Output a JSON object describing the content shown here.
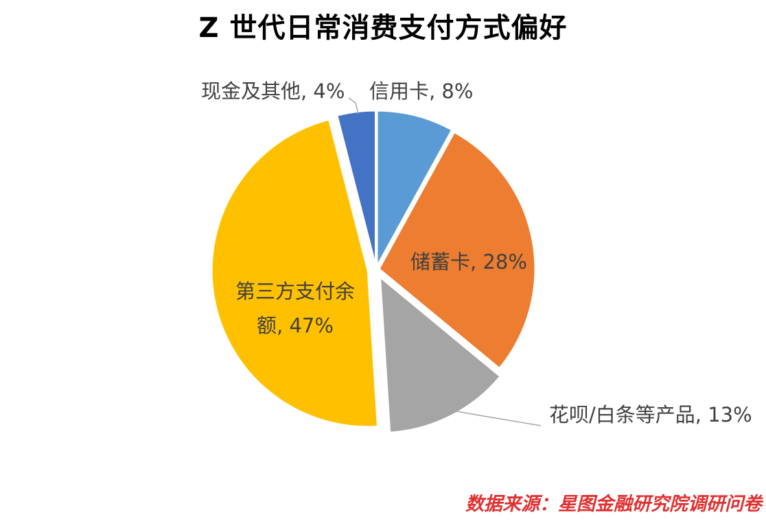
{
  "title": "Z 世代日常消费支付方式偏好",
  "source": "数据来源：星图金融研究院调研问卷",
  "chart_data": {
    "type": "pie",
    "title": "Z 世代日常消费支付方式偏好",
    "slices": [
      {
        "name": "信用卡",
        "value": 8,
        "label_lines": [
          "信用卡, 8%"
        ],
        "color": "#5b9bd5"
      },
      {
        "name": "储蓄卡",
        "value": 28,
        "label_lines": [
          "储蓄卡, 28%"
        ],
        "color": "#ed7d31"
      },
      {
        "name": "花呗/白条等产品",
        "value": 13,
        "label_lines": [
          "花呗/白条等产品, 13%"
        ],
        "color": "#a5a5a5"
      },
      {
        "name": "第三方支付余额",
        "value": 47,
        "label_lines": [
          "第三方支付余",
          "额, 47%"
        ],
        "color": "#ffc000"
      },
      {
        "name": "现金及其他",
        "value": 4,
        "label_lines": [
          "现金及其他, 4%"
        ],
        "color": "#4472c4"
      }
    ],
    "start_angle_deg": 0,
    "direction": "clockwise",
    "legend": "none",
    "label_position": "data labels with leader lines"
  }
}
